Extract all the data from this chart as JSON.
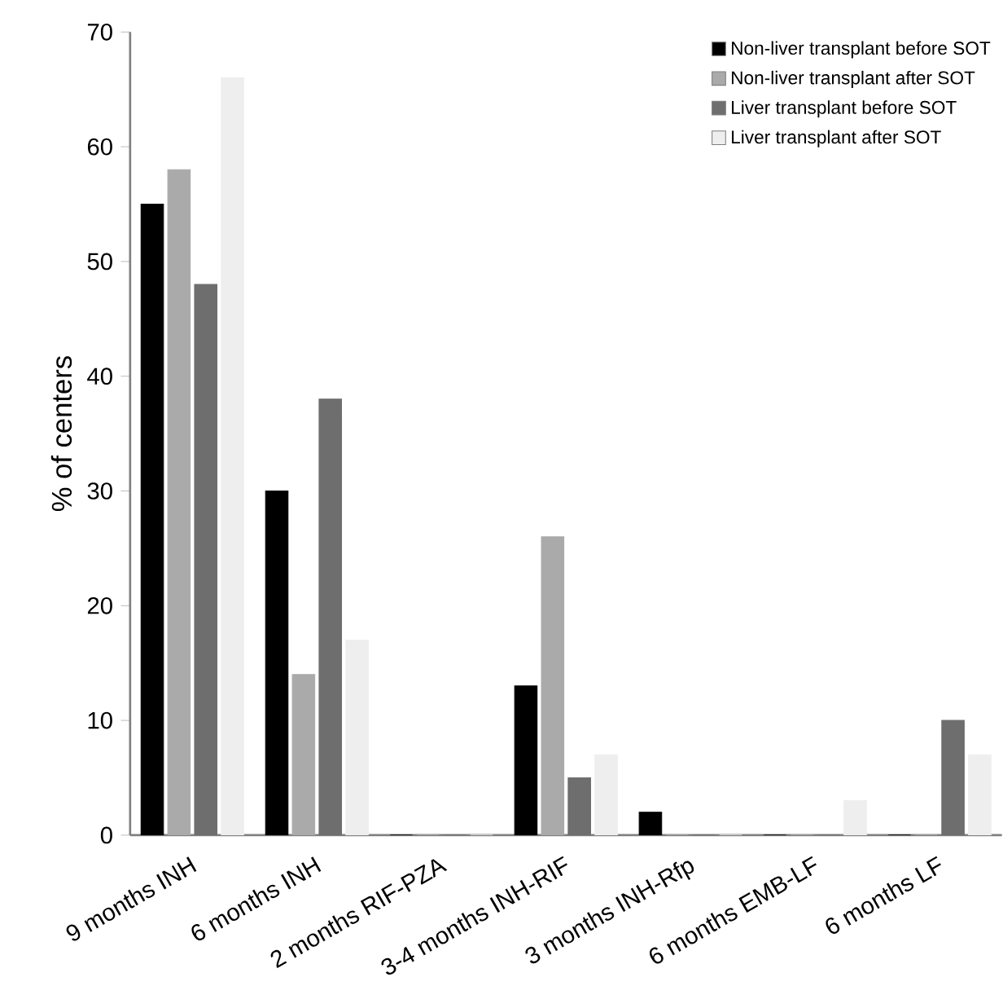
{
  "chart_data": {
    "type": "bar",
    "ylabel": "% of centers",
    "categories": [
      "9 months INH",
      "6 months INH",
      "2 months RIF-PZA",
      "3-4 months INH-RIF",
      "3 months INH-Rfp",
      "6 months EMB-LF",
      "6 months LF"
    ],
    "series": [
      {
        "name": "Non-liver transplant before SOT",
        "color": "#000000",
        "values": [
          55,
          30,
          0,
          13,
          2,
          0,
          0
        ]
      },
      {
        "name": "Non-liver transplant after SOT",
        "color": "#aaaaaa",
        "values": [
          58,
          14,
          0,
          26,
          0,
          0,
          0
        ]
      },
      {
        "name": "Liver transplant before SOT",
        "color": "#6e6e6e",
        "values": [
          48,
          38,
          0,
          5,
          0,
          0,
          10
        ]
      },
      {
        "name": "Liver transplant after SOT",
        "color": "#eeeeee",
        "values": [
          66,
          17,
          0,
          7,
          0,
          3,
          7
        ]
      }
    ],
    "ylim": [
      0,
      70
    ],
    "yticks": [
      0,
      10,
      20,
      30,
      40,
      50,
      60,
      70
    ],
    "legend": "top right",
    "grid": false
  }
}
